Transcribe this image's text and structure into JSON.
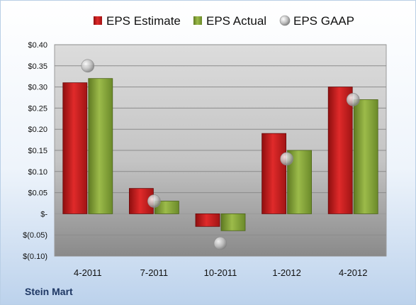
{
  "company": "Stein Mart",
  "colors": {
    "estimate": "#d21f1f",
    "actual": "#8fae3c",
    "gaap": "#b8b8b8"
  },
  "chart_data": {
    "type": "bar",
    "categories": [
      "4-2011",
      "7-2011",
      "10-2011",
      "1-2012",
      "4-2012"
    ],
    "series": [
      {
        "name": "EPS Estimate",
        "type": "bar",
        "values": [
          0.31,
          0.06,
          -0.03,
          0.19,
          0.3
        ]
      },
      {
        "name": "EPS Actual",
        "type": "bar",
        "values": [
          0.32,
          0.03,
          -0.04,
          0.15,
          0.27
        ]
      },
      {
        "name": "EPS GAAP",
        "type": "scatter",
        "values": [
          0.35,
          0.03,
          -0.07,
          0.13,
          0.27
        ]
      }
    ],
    "yticks": [
      0.4,
      0.35,
      0.3,
      0.25,
      0.2,
      0.15,
      0.1,
      0.05,
      0.0,
      -0.05,
      -0.1
    ],
    "ytick_labels": [
      "$0.40",
      "$0.35",
      "$0.30",
      "$0.25",
      "$0.20",
      "$0.15",
      "$0.10",
      "$0.05",
      "$-",
      "$(0.05)",
      "$(0.10)"
    ],
    "ylim": [
      -0.1,
      0.4
    ],
    "legend": "top",
    "grid": true
  }
}
